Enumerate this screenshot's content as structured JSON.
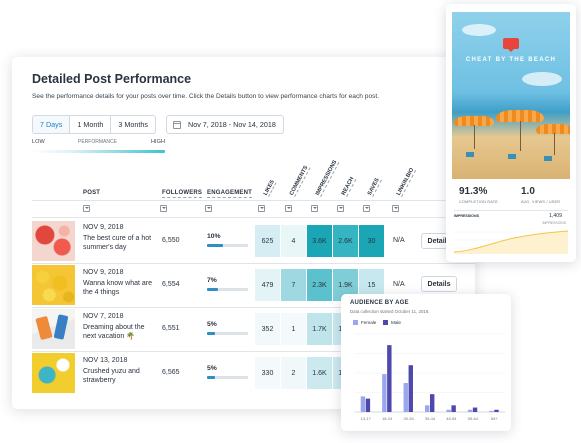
{
  "panel": {
    "title": "Detailed Post Performance",
    "subtitle": "See the performance details for your posts over time. Click the Details button to view performance charts for each post."
  },
  "filters": {
    "ranges": [
      "7 Days",
      "1 Month",
      "3 Months"
    ],
    "active_range": "7 Days",
    "date_range": "Nov 7, 2018 - Nov 14, 2018"
  },
  "scale": {
    "low": "LOW",
    "label": "PERFORMANCE",
    "high": "HIGH"
  },
  "columns": {
    "post": "POST",
    "followers": "FOLLOWERS",
    "engagement": "ENGAGEMENT",
    "likes": "LIKES",
    "comments": "COMMENTS",
    "impressions": "IMPRESSIONS",
    "reach": "REACH",
    "saves": "SAVES",
    "linkinbio": "LINKIN.BIO"
  },
  "rows": [
    {
      "date": "NOV 9, 2018",
      "caption": "The best cure of a hot summer's day",
      "followers": "6,550",
      "engagement": "10%",
      "engagement_fraction": 0.1,
      "likes": "625",
      "comments": "4",
      "impressions": "3.6K",
      "reach": "2.6K",
      "saves": "30",
      "linkinbio": "N/A",
      "details": "Details"
    },
    {
      "date": "NOV 9, 2018",
      "caption": "Wanna know what are the 4 things",
      "followers": "6,554",
      "engagement": "7%",
      "engagement_fraction": 0.07,
      "likes": "479",
      "comments": "7",
      "impressions": "2.3K",
      "reach": "1.9K",
      "saves": "15",
      "linkinbio": "N/A",
      "details": "Details"
    },
    {
      "date": "NOV 7, 2018",
      "caption": "Dreaming about the next vacation 🌴",
      "followers": "6,551",
      "engagement": "5%",
      "engagement_fraction": 0.05,
      "likes": "352",
      "comments": "1",
      "impressions": "1.7K",
      "reach": "1.3K",
      "saves": "",
      "linkinbio": "",
      "details": ""
    },
    {
      "date": "NOV 13, 2018",
      "caption": "Crushed yuzu and strawberry",
      "followers": "6,565",
      "engagement": "5%",
      "engagement_fraction": 0.05,
      "likes": "330",
      "comments": "2",
      "impressions": "1.6K",
      "reach": "1.3K",
      "saves": "",
      "linkinbio": "",
      "details": ""
    }
  ],
  "cell_colors": [
    [
      "#d6eef3",
      "#e9f6f8",
      "#1aa6b5",
      "#35b5c2",
      "#1aa6b5"
    ],
    [
      "#e3f3f6",
      "#9fd8e1",
      "#5bc1cc",
      "#7fcdd6",
      "#c6e8ee"
    ],
    [
      "#f1f9fa",
      "#f4fafb",
      "#bfe5eb",
      "#c8e9ee",
      "#ffffff"
    ],
    [
      "#f4fafb",
      "#f0f8fa",
      "#cbe9ee",
      "#cdeaef",
      "#ffffff"
    ]
  ],
  "phone": {
    "photo_title": "CHEAT BY THE BEACH",
    "completion_rate": "91.3%",
    "completion_label": "COMPLETION RATE",
    "avg_views": "1.0",
    "avg_views_label": "AVG. VIEWS / USER",
    "impressions_label": "IMPRESSIONS",
    "impressions_value": "1,409",
    "impressions_sub": "IMPRESSIONS"
  },
  "audience": {
    "title": "AUDIENCE BY AGE",
    "subtitle": "Data collection started October 11, 2018."
  },
  "chart_data": {
    "type": "bar",
    "title": "AUDIENCE BY AGE",
    "categories": [
      "13-17",
      "18-24",
      "25-34",
      "35-44",
      "45-54",
      "55-64",
      "65+"
    ],
    "series": [
      {
        "name": "Female",
        "values": [
          7,
          17,
          13,
          3,
          1,
          1,
          0.5
        ]
      },
      {
        "name": "Male",
        "values": [
          6,
          30,
          21,
          8,
          3,
          2,
          1
        ]
      }
    ],
    "colors": [
      "#9aa7ef",
      "#4e48ad"
    ],
    "ylim": [
      0,
      35
    ],
    "grid": true,
    "legend": "top-left"
  }
}
